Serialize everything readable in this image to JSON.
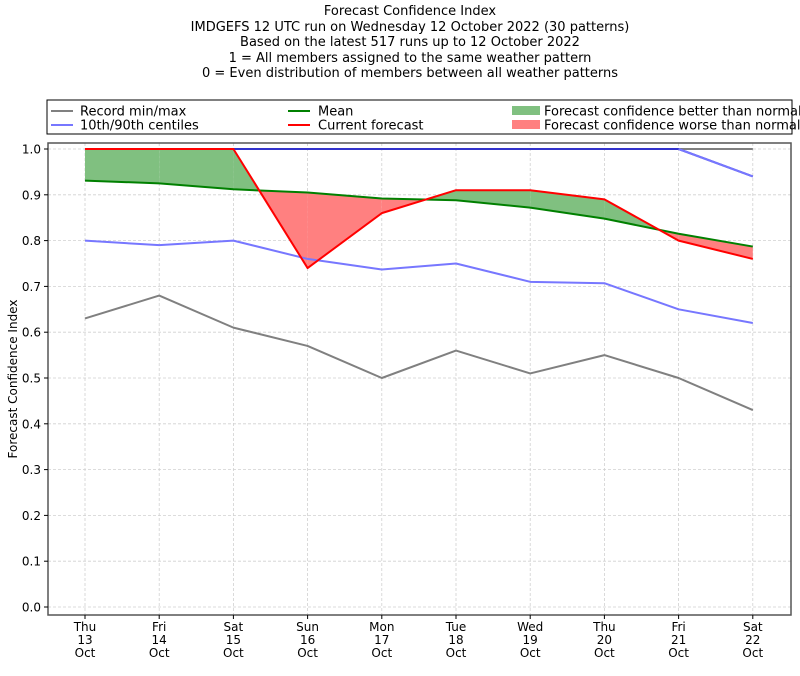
{
  "chart_data": {
    "type": "line",
    "title": "Forecast Confidence Index",
    "subtitle_lines": [
      "IMDGEFS 12 UTC run on Wednesday 12 October 2022 (30 patterns)",
      "Based on the latest 517 runs up to 12 October 2022",
      "1 = All members assigned to the same weather pattern",
      "0 = Even distribution of members between all weather patterns"
    ],
    "xlabel": "",
    "ylabel": "Forecast Confidence Index",
    "ylim": [
      0.0,
      1.0
    ],
    "yticks": [
      "0.0",
      "0.1",
      "0.2",
      "0.3",
      "0.4",
      "0.5",
      "0.6",
      "0.7",
      "0.8",
      "0.9",
      "1.0"
    ],
    "grid": true,
    "legend_position": "top",
    "categories": [
      [
        "Thu",
        "13",
        "Oct"
      ],
      [
        "Fri",
        "14",
        "Oct"
      ],
      [
        "Sat",
        "15",
        "Oct"
      ],
      [
        "Sun",
        "16",
        "Oct"
      ],
      [
        "Mon",
        "17",
        "Oct"
      ],
      [
        "Tue",
        "18",
        "Oct"
      ],
      [
        "Wed",
        "19",
        "Oct"
      ],
      [
        "Thu",
        "20",
        "Oct"
      ],
      [
        "Fri",
        "21",
        "Oct"
      ],
      [
        "Sat",
        "22",
        "Oct"
      ]
    ],
    "series": [
      {
        "name": "Record min",
        "legend": "Record min/max",
        "color": "#808080",
        "values": [
          0.63,
          0.68,
          0.61,
          0.57,
          0.5,
          0.56,
          0.51,
          0.55,
          0.5,
          0.43
        ]
      },
      {
        "name": "Record max",
        "legend": "Record min/max",
        "color": "#808080",
        "values": [
          1.0,
          1.0,
          1.0,
          1.0,
          1.0,
          1.0,
          1.0,
          1.0,
          1.0,
          1.0
        ]
      },
      {
        "name": "10th centile",
        "legend": "10th/90th centiles",
        "color": "#7777ff",
        "values": [
          0.8,
          0.79,
          0.8,
          0.76,
          0.737,
          0.75,
          0.71,
          0.707,
          0.65,
          0.62
        ]
      },
      {
        "name": "90th centile",
        "legend": "10th/90th centiles",
        "color": "#7777ff",
        "values": [
          1.0,
          1.0,
          1.0,
          1.0,
          1.0,
          1.0,
          1.0,
          1.0,
          1.0,
          0.94
        ]
      },
      {
        "name": "Mean",
        "legend": "Mean",
        "color": "#008000",
        "values": [
          0.931,
          0.925,
          0.912,
          0.905,
          0.892,
          0.888,
          0.872,
          0.848,
          0.815,
          0.787
        ]
      },
      {
        "name": "Current forecast",
        "legend": "Current forecast",
        "color": "#ff0000",
        "values": [
          1.0,
          1.0,
          1.0,
          0.74,
          0.86,
          0.91,
          0.91,
          0.89,
          0.8,
          0.76
        ]
      }
    ],
    "fills": [
      {
        "name": "Forecast confidence better than normal",
        "color": "#80c080"
      },
      {
        "name": "Forecast confidence worse than normal",
        "color": "#ff8080"
      }
    ],
    "legend": {
      "record": "Record min/max",
      "centiles": "10th/90th centiles",
      "mean": "Mean",
      "current": "Current forecast",
      "better": "Forecast confidence better than normal",
      "worse": "Forecast confidence worse than normal"
    },
    "colors": {
      "record": "#808080",
      "centiles": "#7777ff",
      "centile_top": "#3333cc",
      "mean": "#008000",
      "current": "#ff0000",
      "better_fill": "#80c080",
      "worse_fill": "#ff8080",
      "grid": "#d0d0d0"
    }
  }
}
